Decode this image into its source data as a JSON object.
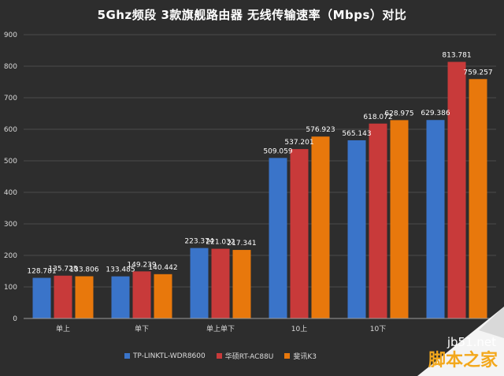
{
  "chart_data": {
    "type": "bar",
    "title": "5Ghz频段 3款旗舰路由器 无线传输速率（Mbps）对比",
    "categories": [
      "单上",
      "单下",
      "单上单下",
      "10上",
      "10下",
      ""
    ],
    "series": [
      {
        "name": "TP-LINKTL-WDR8600",
        "color": "#3a74c9",
        "values": [
          128.781,
          133.485,
          223.374,
          509.059,
          565.143,
          629.386
        ]
      },
      {
        "name": "华硕RT-AC88U",
        "color": "#c83a3a",
        "values": [
          135.728,
          149.239,
          221.032,
          537.201,
          618.072,
          813.781
        ]
      },
      {
        "name": "斐讯K3",
        "color": "#e8780c",
        "values": [
          133.806,
          140.442,
          217.341,
          576.923,
          628.975,
          759.257
        ]
      }
    ],
    "data_labels": [
      [
        "128.781",
        "133.485",
        "223.374",
        "509.059",
        "565.143",
        "629.386"
      ],
      [
        "135.728",
        "149.239",
        "221.032",
        "537.201",
        "618.072",
        "813.781"
      ],
      [
        "133.806",
        "140.442",
        "217.341",
        "576.923",
        "628.975",
        "759.257"
      ]
    ],
    "yticks": [
      "0",
      "100",
      "200",
      "300",
      "400",
      "500",
      "600",
      "700",
      "800",
      "900"
    ],
    "ylim": [
      0,
      900
    ],
    "grid": true,
    "legend_position": "bottom"
  },
  "watermark": {
    "url": "jb51.net",
    "name": "脚本之家"
  }
}
